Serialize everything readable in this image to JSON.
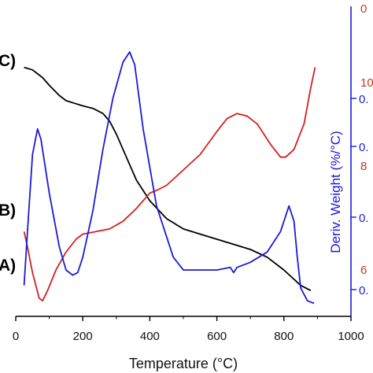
{
  "chart_data": {
    "type": "line",
    "title": "",
    "xlabel": "Temperature (°C)",
    "y2label": "Deriv. Weight (%/°C)",
    "xlim": [
      0,
      1000
    ],
    "x_ticks": [
      "0",
      "200",
      "400",
      "600",
      "800",
      "1000"
    ],
    "right_ticks_red": [
      "10",
      "8",
      "6"
    ],
    "right_ticks_blue": [
      "0.",
      "0.",
      "0.",
      "0."
    ],
    "top_right_tick": "0",
    "curve_labels": [
      "C)",
      "B)",
      "A)"
    ],
    "colors": {
      "C": "#000000",
      "B": "#d42020",
      "A": "#1a1ad8",
      "axis_red": "#c0392b",
      "axis_blue": "#1a1ad8"
    },
    "series": [
      {
        "label": "C)",
        "color": "#000000",
        "x": [
          25,
          50,
          80,
          100,
          130,
          150,
          175,
          200,
          230,
          260,
          280,
          300,
          330,
          360,
          400,
          450,
          500,
          550,
          600,
          650,
          700,
          750,
          800,
          850,
          880
        ],
        "y": [
          0.94,
          0.93,
          0.9,
          0.87,
          0.83,
          0.81,
          0.8,
          0.79,
          0.78,
          0.76,
          0.73,
          0.68,
          0.59,
          0.5,
          0.42,
          0.35,
          0.31,
          0.29,
          0.27,
          0.25,
          0.23,
          0.2,
          0.15,
          0.09,
          0.07
        ]
      },
      {
        "label": "B)",
        "color": "#d42020",
        "x": [
          25,
          35,
          50,
          70,
          80,
          95,
          120,
          150,
          180,
          200,
          240,
          280,
          320,
          360,
          400,
          420,
          450,
          500,
          550,
          600,
          630,
          660,
          690,
          720,
          760,
          790,
          805,
          830,
          860,
          880,
          893
        ],
        "y": [
          0.3,
          0.24,
          0.14,
          0.04,
          0.03,
          0.07,
          0.15,
          0.22,
          0.27,
          0.29,
          0.3,
          0.31,
          0.34,
          0.39,
          0.45,
          0.46,
          0.48,
          0.54,
          0.6,
          0.69,
          0.74,
          0.76,
          0.75,
          0.72,
          0.64,
          0.59,
          0.59,
          0.62,
          0.72,
          0.86,
          0.94
        ]
      },
      {
        "label": "A)",
        "color": "#1a1ad8",
        "x": [
          25,
          35,
          50,
          65,
          75,
          100,
          130,
          150,
          170,
          185,
          200,
          230,
          260,
          290,
          320,
          340,
          355,
          380,
          420,
          470,
          500,
          520,
          550,
          600,
          640,
          650,
          660,
          700,
          750,
          790,
          815,
          830,
          840,
          850,
          870,
          890
        ],
        "y": [
          0.09,
          0.3,
          0.6,
          0.7,
          0.66,
          0.45,
          0.24,
          0.15,
          0.13,
          0.14,
          0.2,
          0.38,
          0.62,
          0.82,
          0.96,
          1.0,
          0.95,
          0.7,
          0.4,
          0.2,
          0.15,
          0.15,
          0.15,
          0.15,
          0.16,
          0.14,
          0.16,
          0.18,
          0.22,
          0.3,
          0.4,
          0.34,
          0.2,
          0.08,
          0.03,
          0.02
        ]
      }
    ]
  }
}
